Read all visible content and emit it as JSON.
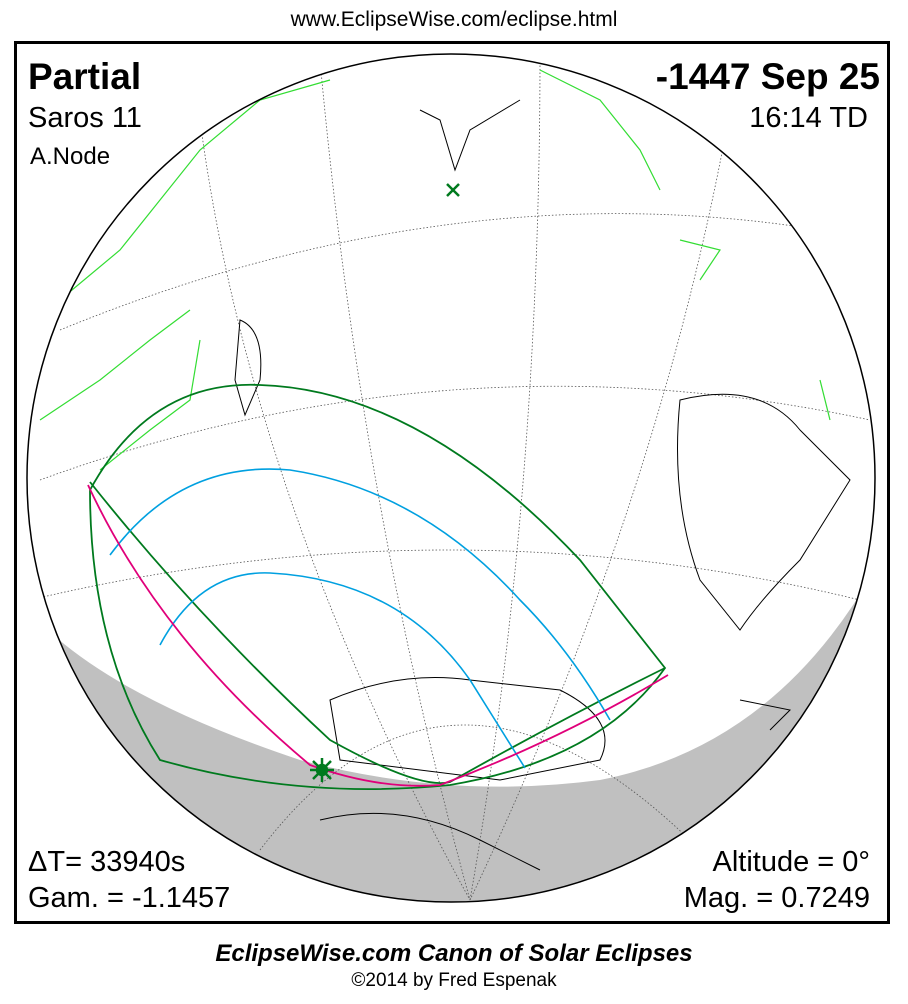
{
  "header_url": "www.EclipseWise.com/eclipse.html",
  "eclipse": {
    "type": "Partial",
    "date": "-1447 Sep 25",
    "saros": "Saros  11",
    "time": "16:14 TD",
    "node": "A.Node",
    "delta_t": "ΔT=  33940s",
    "gamma": "Gam. = -1.1457",
    "altitude": "Altitude =  0°",
    "magnitude": "Mag. = 0.7249"
  },
  "footer": {
    "canon": "EclipseWise.com Canon of Solar Eclipses",
    "copyright": "©2014 by Fred Espenak"
  },
  "colors": {
    "penumbra_limits": "#007a1e",
    "magnitude_curves": "#00a0e0",
    "rise_set_curve": "#e0007a",
    "borders": "#33dd33",
    "night": "#c0c0c0"
  }
}
